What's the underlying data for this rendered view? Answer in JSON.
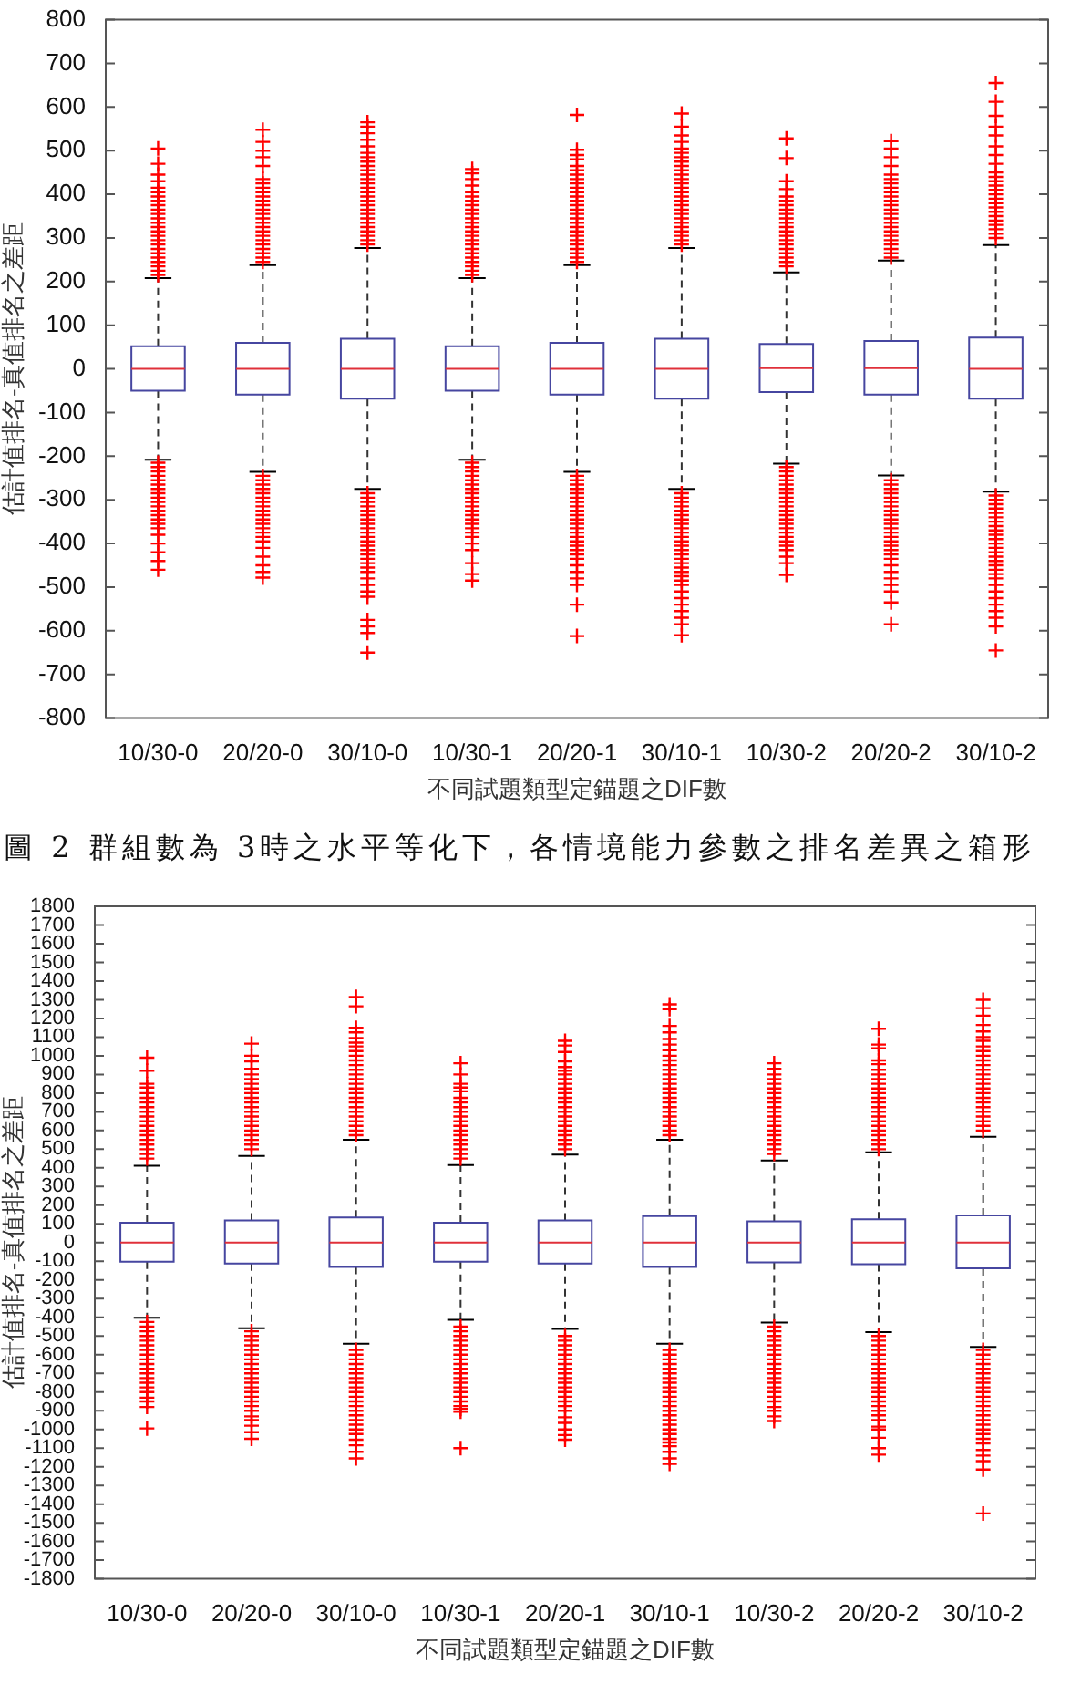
{
  "chart_data": [
    {
      "type": "box",
      "categories": [
        "10/30-0",
        "20/20-0",
        "30/10-0",
        "10/30-1",
        "20/20-1",
        "30/10-1",
        "10/30-2",
        "20/20-2",
        "30/10-2"
      ],
      "xlabel": "不同試題類型定錨題之DIF數",
      "ylabel": "估計值排名-真值排名之差距",
      "marker": "cross",
      "ylim": [
        -800,
        800
      ],
      "yticks": [
        -800,
        -700,
        -600,
        -500,
        -400,
        -300,
        -200,
        -100,
        0,
        100,
        200,
        300,
        400,
        500,
        600,
        700,
        800
      ],
      "annotations": [
        "圖 2 群組數為 3時之水平等化下，各情境能力參數之排名差異之箱形"
      ],
      "boxes": [
        {
          "low": -208,
          "q1": -50,
          "median": 0,
          "q3": 52,
          "high": 208,
          "outliers": [
            215,
            225,
            235,
            245,
            255,
            265,
            275,
            285,
            295,
            305,
            315,
            325,
            335,
            345,
            355,
            365,
            375,
            385,
            395,
            405,
            415,
            430,
            445,
            470,
            505,
            -215,
            -225,
            -235,
            -245,
            -255,
            -265,
            -275,
            -285,
            -295,
            -305,
            -315,
            -325,
            -335,
            -345,
            -355,
            -365,
            -380,
            -400,
            -420,
            -440,
            -460
          ]
        },
        {
          "low": -236,
          "q1": -59,
          "median": 0,
          "q3": 60,
          "high": 238,
          "outliers": [
            245,
            255,
            265,
            275,
            285,
            295,
            305,
            315,
            325,
            335,
            345,
            355,
            365,
            375,
            385,
            395,
            405,
            415,
            425,
            435,
            465,
            485,
            500,
            520,
            548,
            -245,
            -255,
            -265,
            -275,
            -285,
            -295,
            -305,
            -315,
            -325,
            -335,
            -345,
            -355,
            -365,
            -375,
            -385,
            -395,
            -410,
            -430,
            -450,
            -465,
            -478
          ]
        },
        {
          "low": -275,
          "q1": -68,
          "median": 0,
          "q3": 69,
          "high": 277,
          "outliers": [
            285,
            295,
            305,
            315,
            325,
            335,
            345,
            355,
            365,
            375,
            385,
            395,
            405,
            415,
            425,
            435,
            445,
            455,
            465,
            475,
            485,
            495,
            510,
            525,
            540,
            555,
            565,
            -285,
            -295,
            -305,
            -315,
            -325,
            -335,
            -345,
            -355,
            -365,
            -375,
            -385,
            -395,
            -405,
            -415,
            -425,
            -435,
            -445,
            -455,
            -465,
            -480,
            -495,
            -510,
            -522,
            -575,
            -590,
            -605,
            -650
          ]
        },
        {
          "low": -208,
          "q1": -50,
          "median": 0,
          "q3": 52,
          "high": 208,
          "outliers": [
            215,
            225,
            235,
            245,
            255,
            265,
            275,
            285,
            295,
            305,
            315,
            325,
            335,
            345,
            355,
            365,
            375,
            385,
            395,
            405,
            420,
            435,
            448,
            458,
            -215,
            -225,
            -235,
            -245,
            -255,
            -265,
            -275,
            -285,
            -295,
            -305,
            -315,
            -325,
            -335,
            -345,
            -355,
            -365,
            -375,
            -385,
            -400,
            -415,
            -445,
            -470,
            -485
          ]
        },
        {
          "low": -236,
          "q1": -59,
          "median": 0,
          "q3": 60,
          "high": 238,
          "outliers": [
            245,
            255,
            265,
            275,
            285,
            295,
            305,
            315,
            325,
            335,
            345,
            355,
            365,
            375,
            385,
            395,
            405,
            415,
            425,
            435,
            445,
            455,
            465,
            480,
            490,
            502,
            582,
            -245,
            -255,
            -265,
            -275,
            -285,
            -295,
            -305,
            -315,
            -325,
            -335,
            -345,
            -355,
            -365,
            -375,
            -385,
            -395,
            -405,
            -415,
            -425,
            -435,
            -450,
            -465,
            -480,
            -495,
            -540,
            -612
          ]
        },
        {
          "low": -275,
          "q1": -68,
          "median": 0,
          "q3": 69,
          "high": 277,
          "outliers": [
            285,
            295,
            305,
            315,
            325,
            335,
            345,
            355,
            365,
            375,
            385,
            395,
            405,
            415,
            425,
            435,
            445,
            455,
            465,
            475,
            485,
            495,
            505,
            520,
            535,
            555,
            585,
            -285,
            -295,
            -305,
            -315,
            -325,
            -335,
            -345,
            -355,
            -365,
            -375,
            -385,
            -395,
            -405,
            -415,
            -425,
            -435,
            -445,
            -455,
            -465,
            -475,
            -485,
            -495,
            -510,
            -525,
            -540,
            -555,
            -570,
            -585,
            -610
          ]
        },
        {
          "low": -217,
          "q1": -53,
          "median": 2,
          "q3": 57,
          "high": 221,
          "outliers": [
            235,
            245,
            255,
            265,
            275,
            285,
            295,
            305,
            315,
            325,
            335,
            345,
            355,
            365,
            375,
            385,
            395,
            412,
            430,
            483,
            528,
            -225,
            -235,
            -245,
            -255,
            -265,
            -275,
            -285,
            -295,
            -305,
            -315,
            -325,
            -335,
            -345,
            -355,
            -365,
            -375,
            -385,
            -395,
            -405,
            -415,
            -430,
            -445,
            -472
          ]
        },
        {
          "low": -244,
          "q1": -59,
          "median": 2,
          "q3": 64,
          "high": 248,
          "outliers": [
            255,
            265,
            275,
            285,
            295,
            305,
            315,
            325,
            335,
            345,
            355,
            365,
            375,
            385,
            395,
            405,
            415,
            425,
            435,
            445,
            465,
            485,
            505,
            522,
            -255,
            -265,
            -275,
            -285,
            -295,
            -305,
            -315,
            -325,
            -335,
            -345,
            -355,
            -365,
            -375,
            -385,
            -395,
            -405,
            -415,
            -425,
            -435,
            -450,
            -465,
            -480,
            -495,
            -510,
            -535,
            -585
          ]
        },
        {
          "low": -281,
          "q1": -68,
          "median": 0,
          "q3": 72,
          "high": 284,
          "outliers": [
            300,
            310,
            320,
            330,
            340,
            350,
            360,
            370,
            380,
            390,
            400,
            410,
            420,
            430,
            440,
            450,
            470,
            490,
            510,
            535,
            555,
            580,
            612,
            655,
            -290,
            -300,
            -310,
            -320,
            -330,
            -340,
            -350,
            -360,
            -370,
            -380,
            -390,
            -400,
            -410,
            -420,
            -430,
            -440,
            -450,
            -460,
            -470,
            -480,
            -495,
            -510,
            -525,
            -540,
            -555,
            -570,
            -590,
            -645
          ]
        }
      ]
    },
    {
      "type": "box",
      "categories": [
        "10/30-0",
        "20/20-0",
        "30/10-0",
        "10/30-1",
        "20/20-1",
        "30/10-1",
        "10/30-2",
        "20/20-2",
        "30/10-2"
      ],
      "xlabel": "不同試題類型定錨題之DIF數",
      "ylabel": "估計值排名-真值排名之差距",
      "marker": "cross",
      "ylim": [
        -1800,
        1800
      ],
      "yticks": [
        -1800,
        -1700,
        -1600,
        -1500,
        -1400,
        -1300,
        -1200,
        -1100,
        -1000,
        -900,
        -800,
        -700,
        -600,
        -500,
        -400,
        -300,
        -200,
        -100,
        0,
        100,
        200,
        300,
        400,
        500,
        600,
        700,
        800,
        900,
        1000,
        1100,
        1200,
        1300,
        1400,
        1500,
        1600,
        1700,
        1800
      ],
      "boxes": [
        {
          "low": -403,
          "q1": -102,
          "median": 0,
          "q3": 107,
          "high": 412,
          "outliers": [
            450,
            475,
            500,
            525,
            550,
            575,
            600,
            625,
            650,
            675,
            700,
            725,
            750,
            775,
            800,
            830,
            850,
            920,
            990,
            -425,
            -450,
            -475,
            -500,
            -525,
            -550,
            -575,
            -600,
            -625,
            -650,
            -675,
            -700,
            -725,
            -750,
            -775,
            -800,
            -830,
            -850,
            -880,
            -995
          ]
        },
        {
          "low": -459,
          "q1": -112,
          "median": 0,
          "q3": 118,
          "high": 464,
          "outliers": [
            500,
            525,
            550,
            575,
            600,
            625,
            650,
            675,
            700,
            725,
            750,
            775,
            800,
            825,
            850,
            875,
            900,
            930,
            970,
            1000,
            1065,
            -475,
            -500,
            -525,
            -550,
            -575,
            -600,
            -625,
            -650,
            -675,
            -700,
            -725,
            -750,
            -775,
            -800,
            -825,
            -850,
            -875,
            -900,
            -930,
            -950,
            -980,
            -1015,
            -1050
          ]
        },
        {
          "low": -541,
          "q1": -130,
          "median": 0,
          "q3": 135,
          "high": 550,
          "outliers": [
            575,
            600,
            625,
            650,
            675,
            700,
            725,
            750,
            775,
            800,
            825,
            850,
            875,
            900,
            925,
            950,
            975,
            1000,
            1025,
            1050,
            1070,
            1095,
            1125,
            1150,
            1265,
            1315,
            -575,
            -600,
            -625,
            -650,
            -675,
            -700,
            -725,
            -750,
            -775,
            -800,
            -825,
            -850,
            -875,
            -900,
            -925,
            -950,
            -975,
            -1000,
            -1025,
            -1055,
            -1085,
            -1120,
            -1155
          ]
        },
        {
          "low": -414,
          "q1": -102,
          "median": 0,
          "q3": 107,
          "high": 415,
          "outliers": [
            450,
            475,
            500,
            525,
            550,
            575,
            600,
            625,
            650,
            675,
            700,
            725,
            750,
            775,
            810,
            830,
            850,
            900,
            960,
            -450,
            -475,
            -500,
            -525,
            -550,
            -575,
            -600,
            -625,
            -650,
            -675,
            -700,
            -725,
            -750,
            -775,
            -800,
            -825,
            -850,
            -875,
            -890,
            -905,
            -1100
          ]
        },
        {
          "low": -462,
          "q1": -112,
          "median": 0,
          "q3": 118,
          "high": 471,
          "outliers": [
            500,
            525,
            550,
            575,
            600,
            625,
            650,
            675,
            700,
            725,
            750,
            775,
            800,
            825,
            850,
            875,
            900,
            920,
            940,
            970,
            1020,
            1055,
            1080,
            -500,
            -525,
            -550,
            -575,
            -600,
            -625,
            -650,
            -675,
            -700,
            -725,
            -750,
            -775,
            -800,
            -825,
            -850,
            -875,
            -900,
            -935,
            -965,
            -1000,
            -1030,
            -1055
          ]
        },
        {
          "low": -541,
          "q1": -130,
          "median": 0,
          "q3": 142,
          "high": 550,
          "outliers": [
            575,
            600,
            625,
            650,
            675,
            700,
            725,
            750,
            775,
            800,
            825,
            850,
            875,
            900,
            925,
            950,
            975,
            1000,
            1030,
            1060,
            1090,
            1125,
            1160,
            1250,
            1275,
            -575,
            -600,
            -625,
            -650,
            -675,
            -700,
            -725,
            -750,
            -775,
            -800,
            -825,
            -850,
            -875,
            -900,
            -925,
            -950,
            -975,
            -1000,
            -1025,
            -1050,
            -1070,
            -1090,
            -1120,
            -1155,
            -1185
          ]
        },
        {
          "low": -428,
          "q1": -106,
          "median": 0,
          "q3": 114,
          "high": 439,
          "outliers": [
            475,
            500,
            525,
            550,
            575,
            600,
            625,
            650,
            675,
            700,
            725,
            750,
            775,
            800,
            825,
            850,
            875,
            900,
            930,
            960,
            -450,
            -475,
            -500,
            -525,
            -550,
            -575,
            -600,
            -625,
            -650,
            -675,
            -700,
            -725,
            -750,
            -775,
            -800,
            -825,
            -850,
            -880,
            -900,
            -930,
            -955
          ]
        },
        {
          "low": -479,
          "q1": -116,
          "median": 0,
          "q3": 125,
          "high": 484,
          "outliers": [
            500,
            525,
            550,
            575,
            600,
            625,
            650,
            675,
            700,
            725,
            750,
            775,
            800,
            825,
            850,
            875,
            900,
            925,
            955,
            975,
            1040,
            1060,
            1145,
            -500,
            -525,
            -550,
            -575,
            -600,
            -625,
            -650,
            -675,
            -700,
            -725,
            -750,
            -775,
            -800,
            -825,
            -850,
            -875,
            -900,
            -925,
            -950,
            -985,
            -1000,
            -1045,
            -1100,
            -1135
          ]
        },
        {
          "low": -559,
          "q1": -138,
          "median": 0,
          "q3": 145,
          "high": 567,
          "outliers": [
            600,
            625,
            650,
            675,
            700,
            725,
            750,
            775,
            800,
            825,
            850,
            875,
            900,
            925,
            950,
            975,
            1000,
            1025,
            1050,
            1080,
            1100,
            1130,
            1165,
            1215,
            1255,
            1300,
            -575,
            -600,
            -625,
            -650,
            -675,
            -700,
            -725,
            -750,
            -775,
            -800,
            -825,
            -850,
            -875,
            -900,
            -925,
            -950,
            -975,
            -1000,
            -1025,
            -1050,
            -1075,
            -1110,
            -1140,
            -1170,
            -1215,
            -1450
          ]
        }
      ]
    }
  ]
}
